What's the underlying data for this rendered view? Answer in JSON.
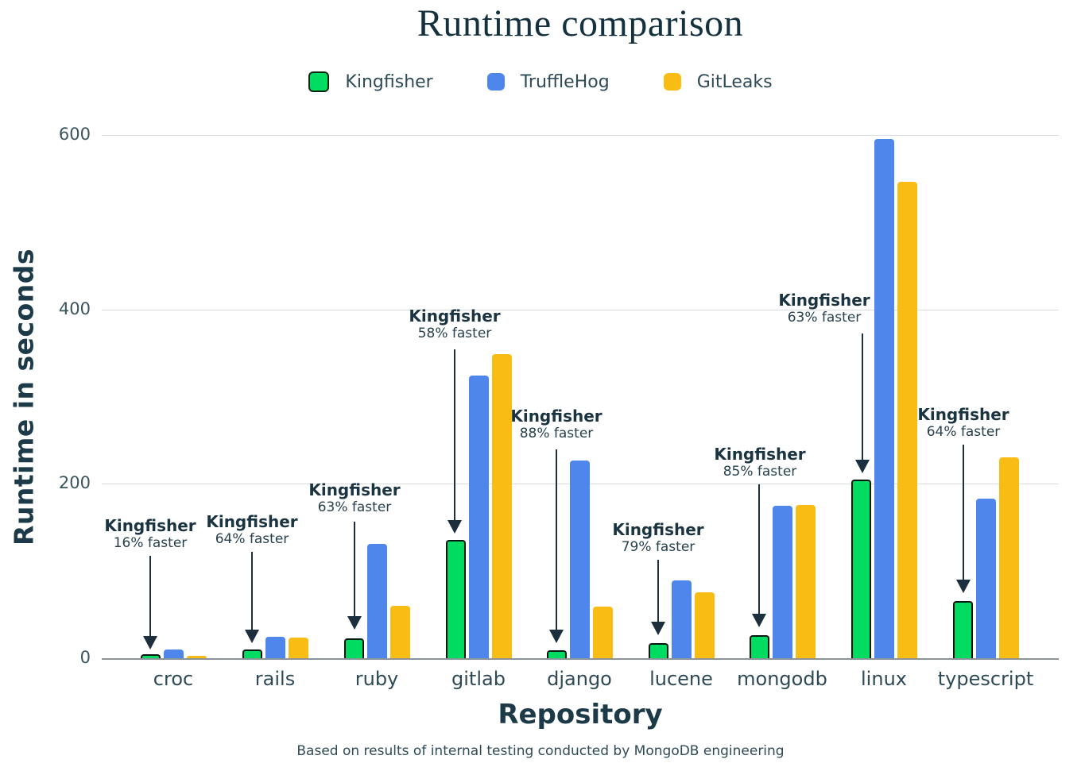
{
  "title": "Runtime comparison",
  "legend": {
    "items": [
      {
        "label": "Kingfisher",
        "color": "#00dc62",
        "bordered": true
      },
      {
        "label": "TruffleHog",
        "color": "#4e86ec",
        "bordered": false
      },
      {
        "label": "GitLeaks",
        "color": "#f8bc15",
        "bordered": false
      }
    ]
  },
  "y_axis": {
    "title": "Runtime in seconds",
    "ticks": [
      0,
      200,
      400,
      600
    ]
  },
  "x_axis": {
    "title": "Repository"
  },
  "footnote": "Based on results of internal testing conducted by MongoDB engineering",
  "chart_data": {
    "type": "bar",
    "title": "Runtime comparison",
    "xlabel": "Repository",
    "ylabel": "Runtime in seconds",
    "ylim": [
      0,
      620
    ],
    "grid": "horizontal",
    "legend_position": "top-center",
    "categories": [
      "croc",
      "rails",
      "ruby",
      "gitlab",
      "django",
      "lucene",
      "mongodb",
      "linux",
      "typescript"
    ],
    "series": [
      {
        "name": "Kingfisher",
        "color": "#00dc62",
        "values": [
          5,
          10,
          23,
          136,
          9,
          17,
          26,
          205,
          66
        ]
      },
      {
        "name": "TruffleHog",
        "color": "#4e86ec",
        "values": [
          10,
          25,
          131,
          324,
          227,
          89,
          175,
          595,
          183
        ]
      },
      {
        "name": "GitLeaks",
        "color": "#f8bc15",
        "values": [
          3,
          24,
          60,
          349,
          59,
          76,
          176,
          546,
          230
        ]
      }
    ],
    "annotations": [
      {
        "category": "croc",
        "label": "Kingfisher",
        "sub": "16% faster"
      },
      {
        "category": "rails",
        "label": "Kingfisher",
        "sub": "64% faster"
      },
      {
        "category": "ruby",
        "label": "Kingfisher",
        "sub": "63% faster"
      },
      {
        "category": "gitlab",
        "label": "Kingfisher",
        "sub": "58% faster"
      },
      {
        "category": "django",
        "label": "Kingfisher",
        "sub": "88% faster"
      },
      {
        "category": "lucene",
        "label": "Kingfisher",
        "sub": "79% faster"
      },
      {
        "category": "mongodb",
        "label": "Kingfisher",
        "sub": "85% faster"
      },
      {
        "category": "linux",
        "label": "Kingfisher",
        "sub": "63% faster"
      },
      {
        "category": "typescript",
        "label": "Kingfisher",
        "sub": "64% faster"
      }
    ]
  }
}
